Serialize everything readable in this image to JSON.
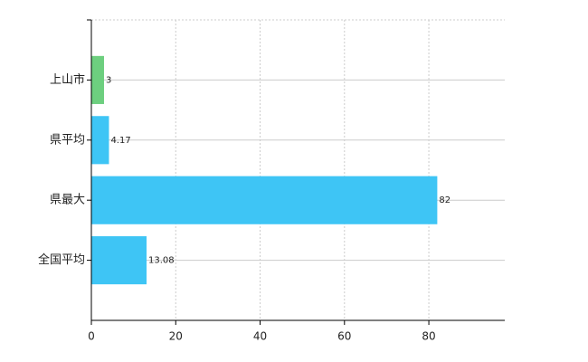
{
  "chart_data": {
    "type": "barh",
    "categories": [
      "上山市",
      "県平均",
      "県最大",
      "全国平均"
    ],
    "values": [
      3,
      4.17,
      82,
      13.08
    ],
    "colors": [
      "#6dcf7f",
      "#3ec5f5",
      "#3ec5f5",
      "#3ec5f5"
    ],
    "xlim": [
      0,
      98
    ],
    "xticks": [
      0,
      20,
      40,
      60,
      80
    ],
    "grid": true
  }
}
